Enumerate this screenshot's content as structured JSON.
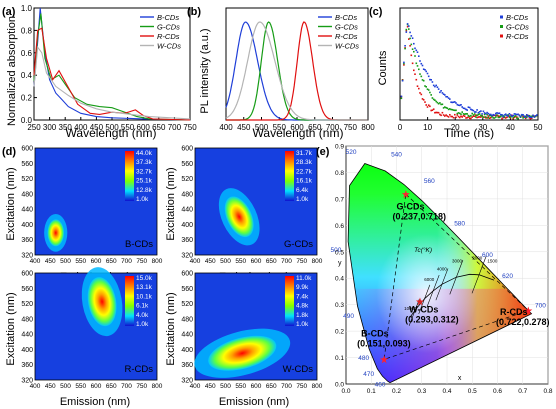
{
  "panels": {
    "a": {
      "letter": "(a)",
      "ylabel": "Normalized absorption",
      "xlabel": "Wavelength (nm)"
    },
    "b": {
      "letter": "(b)",
      "ylabel": "PL intensity (a.u.)",
      "xlabel": "Wavelength (nm)"
    },
    "c": {
      "letter": "(c)",
      "ylabel": "Counts",
      "xlabel": "Time (ns)"
    },
    "d": {
      "letter": "(d)",
      "ylabel": "Excitation (nm)",
      "xlabel": "Emission (nm)"
    },
    "e": {
      "letter": "(e)"
    }
  },
  "colors": {
    "B": "#1f3fd8",
    "G": "#169c16",
    "R": "#e01010",
    "W": "#b4b4b4"
  },
  "chart_data": [
    {
      "id": "a",
      "type": "line",
      "xlabel": "Wavelength (nm)",
      "ylabel": "Normalized absorption",
      "xlim": [
        250,
        750
      ],
      "ylim": [
        0,
        1.0
      ],
      "xticks": [
        "250",
        "300",
        "350",
        "400",
        "450",
        "500",
        "550",
        "600",
        "650",
        "700",
        "750"
      ],
      "yticks": [
        "0.0",
        "0.2",
        "0.4",
        "0.6",
        "0.8",
        "1.0"
      ],
      "legend": {
        "position": "top-right"
      },
      "series": [
        {
          "name": "B-CDs",
          "key": "B",
          "points": [
            [
              250,
              0.3
            ],
            [
              262,
              0.7
            ],
            [
              270,
              1.0
            ],
            [
              285,
              0.6
            ],
            [
              300,
              0.36
            ],
            [
              320,
              0.24
            ],
            [
              340,
              0.18
            ],
            [
              360,
              0.12
            ],
            [
              400,
              0.06
            ],
            [
              450,
              0.03
            ],
            [
              500,
              0.02
            ],
            [
              600,
              0.01
            ],
            [
              750,
              0.0
            ]
          ]
        },
        {
          "name": "G-CDs",
          "key": "G",
          "points": [
            [
              250,
              0.35
            ],
            [
              262,
              0.75
            ],
            [
              272,
              0.95
            ],
            [
              285,
              0.55
            ],
            [
              305,
              0.36
            ],
            [
              330,
              0.4
            ],
            [
              350,
              0.32
            ],
            [
              380,
              0.2
            ],
            [
              420,
              0.14
            ],
            [
              460,
              0.12
            ],
            [
              500,
              0.11
            ],
            [
              530,
              0.08
            ],
            [
              580,
              0.03
            ],
            [
              620,
              0.01
            ],
            [
              750,
              0.0
            ]
          ]
        },
        {
          "name": "R-CDs",
          "key": "R",
          "points": [
            [
              250,
              0.4
            ],
            [
              262,
              0.8
            ],
            [
              275,
              0.82
            ],
            [
              290,
              0.55
            ],
            [
              310,
              0.36
            ],
            [
              330,
              0.44
            ],
            [
              350,
              0.34
            ],
            [
              390,
              0.14
            ],
            [
              430,
              0.06
            ],
            [
              460,
              0.05
            ],
            [
              500,
              0.07
            ],
            [
              540,
              0.06
            ],
            [
              575,
              0.09
            ],
            [
              600,
              0.04
            ],
            [
              630,
              0.01
            ],
            [
              750,
              0.0
            ]
          ]
        },
        {
          "name": "W-CDs",
          "key": "W",
          "points": [
            [
              250,
              0.3
            ],
            [
              262,
              0.65
            ],
            [
              275,
              0.6
            ],
            [
              290,
              0.42
            ],
            [
              320,
              0.3
            ],
            [
              360,
              0.22
            ],
            [
              400,
              0.15
            ],
            [
              450,
              0.1
            ],
            [
              500,
              0.07
            ],
            [
              560,
              0.05
            ],
            [
              620,
              0.03
            ],
            [
              750,
              0.01
            ]
          ]
        }
      ]
    },
    {
      "id": "b",
      "type": "line",
      "xlabel": "Wavelength (nm)",
      "ylabel": "PL intensity (a.u.)",
      "xlim": [
        400,
        800
      ],
      "xticks": [
        "400",
        "450",
        "500",
        "550",
        "600",
        "650",
        "700",
        "750",
        "800"
      ],
      "legend": {
        "position": "top-right"
      },
      "series": [
        {
          "name": "B-CDs",
          "key": "B",
          "peak": 455,
          "width": 48
        },
        {
          "name": "G-CDs",
          "key": "G",
          "peak": 520,
          "width": 36
        },
        {
          "name": "R-CDs",
          "key": "R",
          "peak": 620,
          "width": 34
        },
        {
          "name": "W-CDs",
          "key": "W",
          "peak": 495,
          "width": 60
        }
      ]
    },
    {
      "id": "c",
      "type": "scatter",
      "xlabel": "Time (ns)",
      "ylabel": "Counts",
      "xlim": [
        0,
        50
      ],
      "xticks": [
        "0",
        "10",
        "20",
        "30",
        "40",
        "50"
      ],
      "legend": {
        "position": "top-right"
      },
      "series": [
        {
          "name": "B-CDs",
          "key": "B",
          "tau": 9.0
        },
        {
          "name": "G-CDs",
          "key": "G",
          "tau": 6.0
        },
        {
          "name": "R-CDs",
          "key": "R",
          "tau": 3.5
        }
      ]
    },
    {
      "id": "d",
      "type": "heatmap",
      "xlabel": "Emission (nm)",
      "ylabel": "Excitation (nm)",
      "xlim": [
        400,
        800
      ],
      "ylim": [
        320,
        600
      ],
      "xticks": [
        "400",
        "450",
        "500",
        "550",
        "600",
        "650",
        "700",
        "750",
        "800"
      ],
      "yticks": [
        "320",
        "360",
        "400",
        "440",
        "480",
        "520",
        "560",
        "600"
      ],
      "maps": [
        {
          "name": "B-CDs",
          "em": 468,
          "ex": 378,
          "sx": 20,
          "sy": 26,
          "rot": 0,
          "scale": [
            "44.0k",
            "37.3k",
            "32.7k",
            "25.1k",
            "12.8k",
            "1.0k"
          ]
        },
        {
          "name": "G-CDs",
          "em": 545,
          "ex": 420,
          "sx": 30,
          "sy": 42,
          "rot": 25,
          "scale": [
            "31.7k",
            "28.3k",
            "22.7k",
            "16.1k",
            "6.4k",
            "1.0k"
          ]
        },
        {
          "name": "R-CDs",
          "em": 620,
          "ex": 525,
          "sx": 34,
          "sy": 48,
          "rot": 10,
          "scale": [
            "15.0k",
            "13.1k",
            "10.1k",
            "6.1k",
            "4.0k",
            "1.0k"
          ]
        },
        {
          "name": "W-CDs",
          "em": 555,
          "ex": 390,
          "sx": 85,
          "sy": 30,
          "rot": 15,
          "scale": [
            "11.0k",
            "9.9k",
            "7.4k",
            "4.8k",
            "1.8k",
            "1.0k"
          ]
        }
      ]
    },
    {
      "id": "e",
      "type": "scatter",
      "subtype": "cie1931",
      "xlabel": "x",
      "ylabel": "y",
      "xlim": [
        0,
        0.8
      ],
      "ylim": [
        0,
        0.9
      ],
      "xticks": [
        "0.0",
        "0.1",
        "0.2",
        "0.3",
        "0.4",
        "0.5",
        "0.6",
        "0.7",
        "0.8"
      ],
      "yticks": [
        "0.0",
        "0.1",
        "0.2",
        "0.3",
        "0.4",
        "0.5",
        "0.6",
        "0.7",
        "0.8",
        "0.9"
      ],
      "wavelength_labels": [
        "460",
        "470",
        "480",
        "490",
        "500",
        "520",
        "540",
        "560",
        "580",
        "600",
        "620",
        "700"
      ],
      "tc_label": "Tc(°K)",
      "cct_labels": [
        "10000",
        "6000",
        "4000",
        "3000",
        "2000",
        "1500"
      ],
      "points": [
        {
          "name": "G-CDs",
          "coords": "(0.237,0.718)",
          "x": 0.237,
          "y": 0.718
        },
        {
          "name": "W-CDs",
          "coords": "(0.293,0.312)",
          "x": 0.293,
          "y": 0.312
        },
        {
          "name": "R-CDs",
          "coords": "(0.722,0.278)",
          "x": 0.722,
          "y": 0.278
        },
        {
          "name": "B-CDs",
          "coords": "(0.151,0.093)",
          "x": 0.151,
          "y": 0.093
        }
      ]
    }
  ]
}
